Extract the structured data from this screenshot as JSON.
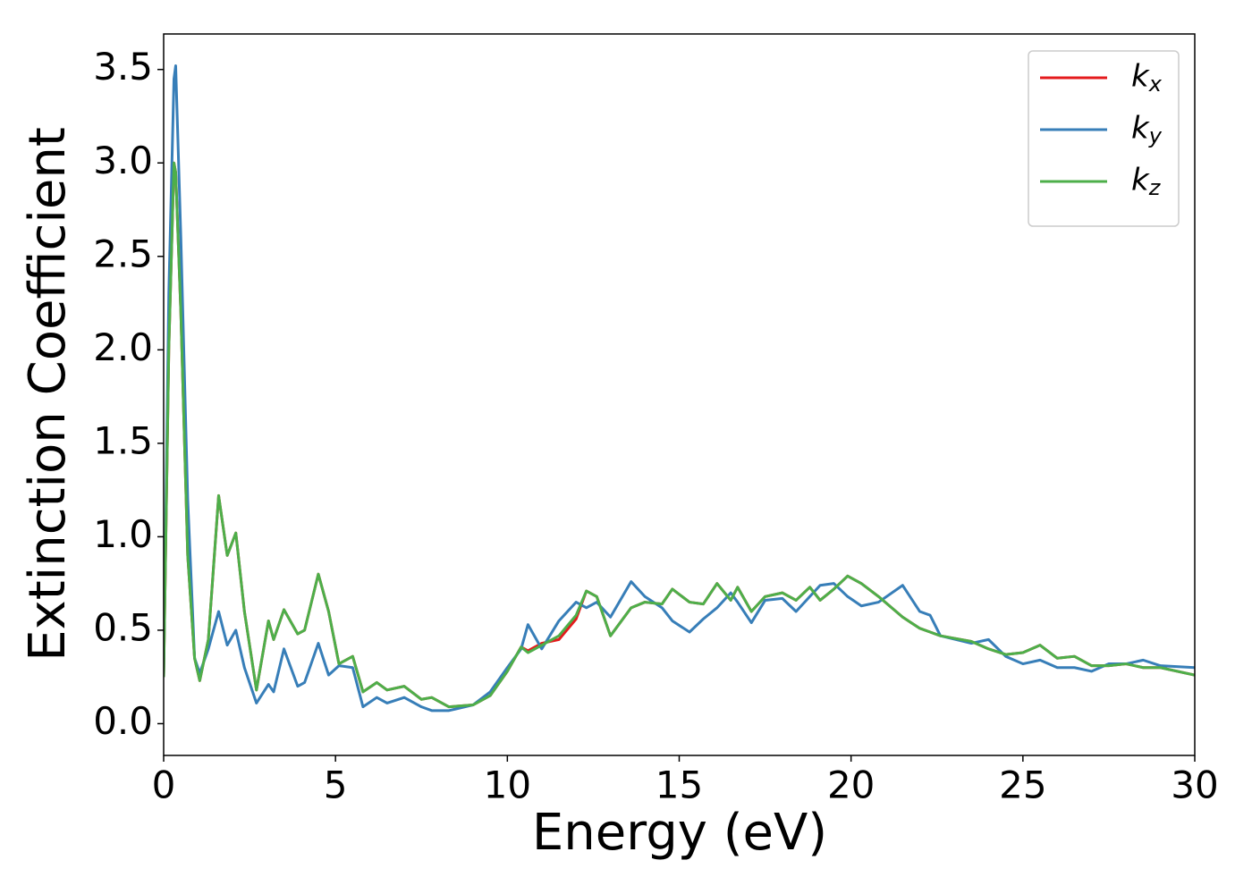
{
  "chart_data": {
    "type": "line",
    "x_label": "Energy (eV)",
    "y_label": "Extinction Coefficient",
    "xlim": [
      0,
      30
    ],
    "ylim": [
      -0.17,
      3.69
    ],
    "xticks": [
      0,
      5,
      10,
      15,
      20,
      25,
      30
    ],
    "yticks": [
      {
        "value": 0,
        "label": "0.0"
      },
      0.5,
      {
        "value": 1,
        "label": "1.0"
      },
      1.5,
      {
        "value": 2,
        "label": "2.0"
      },
      2.5,
      {
        "value": 3,
        "label": "3.0"
      },
      3.5
    ],
    "legend": "upper right",
    "x": [
      0,
      0.15,
      0.3,
      0.35,
      0.5,
      0.7,
      0.9,
      1.05,
      1.3,
      1.6,
      1.85,
      2.1,
      2.35,
      2.7,
      3.05,
      3.2,
      3.5,
      3.9,
      4.1,
      4.5,
      4.8,
      5.1,
      5.5,
      5.8,
      6.2,
      6.5,
      7.0,
      7.5,
      7.8,
      8.3,
      9.0,
      9.5,
      10.0,
      10.4,
      10.6,
      11.0,
      11.5,
      12.0,
      12.3,
      12.6,
      13.0,
      13.6,
      14.0,
      14.5,
      14.8,
      15.3,
      15.7,
      16.1,
      16.5,
      16.7,
      17.1,
      17.5,
      18.0,
      18.4,
      18.8,
      19.1,
      19.5,
      19.9,
      20.3,
      20.8,
      21.5,
      22.0,
      22.3,
      22.6,
      23.5,
      24.0,
      24.5,
      25.0,
      25.5,
      26.0,
      26.5,
      27.0,
      27.5,
      28.0,
      28.5,
      29.0,
      30.0
    ],
    "series": [
      {
        "name": "kx",
        "color": "#e41a1c",
        "values": [
          0.25,
          2.0,
          3.0,
          2.95,
          2.2,
          0.9,
          0.35,
          0.23,
          0.45,
          1.22,
          0.9,
          1.02,
          0.6,
          0.18,
          0.55,
          0.45,
          0.61,
          0.48,
          0.5,
          0.8,
          0.6,
          0.32,
          0.36,
          0.17,
          0.22,
          0.18,
          0.2,
          0.13,
          0.14,
          0.09,
          0.1,
          0.15,
          0.28,
          0.41,
          0.39,
          0.43,
          0.45,
          0.56,
          0.71,
          0.68,
          0.47,
          0.62,
          0.65,
          0.64,
          0.72,
          0.65,
          0.64,
          0.75,
          0.66,
          0.73,
          0.6,
          0.68,
          0.7,
          0.66,
          0.73,
          0.66,
          0.72,
          0.79,
          0.75,
          0.68,
          0.57,
          0.51,
          0.49,
          0.47,
          0.44,
          0.4,
          0.37,
          0.38,
          0.42,
          0.35,
          0.36,
          0.31,
          0.31,
          0.32,
          0.3,
          0.3,
          0.26
        ]
      },
      {
        "name": "ky",
        "color": "#377eb8",
        "values": [
          0.25,
          2.3,
          3.45,
          3.52,
          2.6,
          1.2,
          0.35,
          0.27,
          0.4,
          0.6,
          0.42,
          0.5,
          0.3,
          0.11,
          0.21,
          0.17,
          0.4,
          0.2,
          0.22,
          0.43,
          0.26,
          0.31,
          0.3,
          0.09,
          0.14,
          0.11,
          0.14,
          0.09,
          0.07,
          0.07,
          0.1,
          0.17,
          0.3,
          0.4,
          0.53,
          0.4,
          0.55,
          0.65,
          0.62,
          0.65,
          0.57,
          0.76,
          0.68,
          0.62,
          0.55,
          0.49,
          0.56,
          0.62,
          0.7,
          0.65,
          0.54,
          0.66,
          0.67,
          0.6,
          0.68,
          0.74,
          0.75,
          0.68,
          0.63,
          0.65,
          0.74,
          0.6,
          0.58,
          0.47,
          0.43,
          0.45,
          0.36,
          0.32,
          0.34,
          0.3,
          0.3,
          0.28,
          0.32,
          0.32,
          0.34,
          0.31,
          0.3
        ]
      },
      {
        "name": "kz",
        "color": "#4daf4a",
        "values": [
          0.25,
          2.0,
          3.0,
          2.95,
          2.2,
          0.9,
          0.35,
          0.23,
          0.45,
          1.22,
          0.9,
          1.02,
          0.6,
          0.18,
          0.55,
          0.45,
          0.61,
          0.48,
          0.5,
          0.8,
          0.6,
          0.32,
          0.36,
          0.17,
          0.22,
          0.18,
          0.2,
          0.13,
          0.14,
          0.09,
          0.1,
          0.15,
          0.28,
          0.41,
          0.38,
          0.42,
          0.47,
          0.58,
          0.71,
          0.68,
          0.47,
          0.62,
          0.65,
          0.64,
          0.72,
          0.65,
          0.64,
          0.75,
          0.66,
          0.73,
          0.6,
          0.68,
          0.7,
          0.66,
          0.73,
          0.66,
          0.72,
          0.79,
          0.75,
          0.68,
          0.57,
          0.51,
          0.49,
          0.47,
          0.44,
          0.4,
          0.37,
          0.38,
          0.42,
          0.35,
          0.36,
          0.31,
          0.31,
          0.32,
          0.3,
          0.3,
          0.26
        ]
      }
    ]
  }
}
